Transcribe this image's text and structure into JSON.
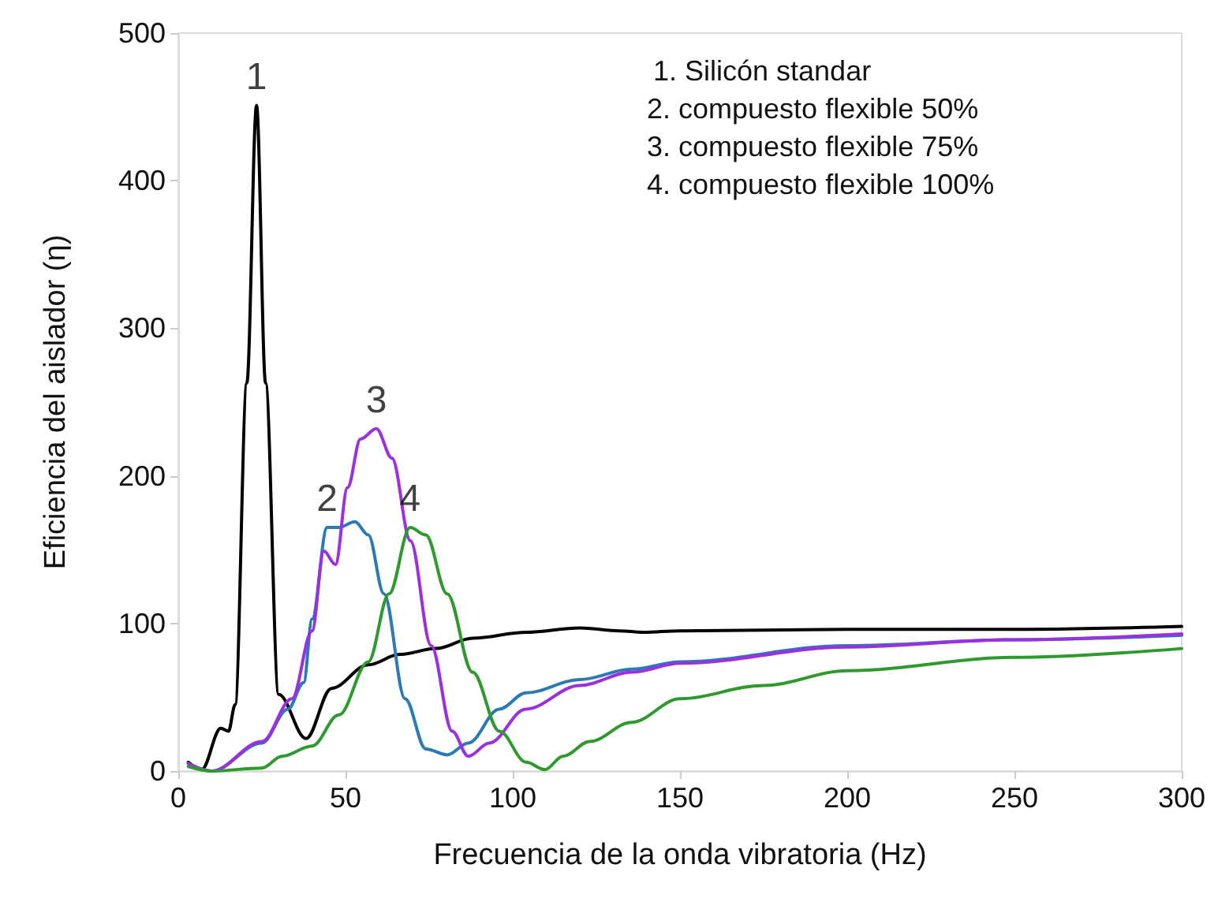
{
  "chart_data": {
    "type": "line",
    "xlabel": "Frecuencia de la onda vibratoria (Hz)",
    "ylabel": "Eficiencia del aislador (η)",
    "xlim": [
      0,
      300
    ],
    "xticks": [
      0,
      50,
      100,
      150,
      200,
      250,
      300
    ],
    "ylim": [
      0,
      500
    ],
    "yticks": [
      0,
      100,
      200,
      300,
      400,
      500
    ],
    "grid": false,
    "marker": "none",
    "line_style": "solid",
    "series": [
      {
        "color": "#000000",
        "x": [
          3,
          7,
          12.7,
          15,
          17,
          20.5,
          23.4,
          26.1,
          30,
          38.2,
          45.8,
          56.8,
          66.2,
          77,
          88,
          104,
          120,
          132,
          139,
          150,
          200,
          250,
          300
        ],
        "values": [
          6,
          1,
          29,
          27,
          45,
          263,
          451,
          263,
          52,
          22,
          56,
          72,
          79,
          83,
          90,
          94,
          97,
          95,
          94,
          95,
          96,
          96,
          98
        ]
      },
      {
        "color": "#2a7ab8",
        "x": [
          3,
          10,
          25,
          32.8,
          37.5,
          40,
          44.5,
          48,
          52.8,
          56.8,
          61.5,
          67.8,
          74,
          80.4,
          86.7,
          96,
          104,
          120,
          135.5,
          150,
          200,
          250,
          300
        ],
        "values": [
          5,
          0,
          19,
          42,
          60,
          103,
          165,
          165,
          169,
          160,
          120,
          49,
          15,
          11,
          19,
          42,
          53,
          62,
          69,
          74,
          85,
          89,
          92
        ]
      },
      {
        "color": "#9b30e0",
        "x": [
          3,
          10,
          25,
          34,
          40,
          43.5,
          47,
          50.6,
          54.5,
          59.2,
          63.9,
          69.4,
          75.6,
          81.9,
          86.7,
          93,
          103.9,
          120,
          135.5,
          150,
          200,
          250,
          300
        ],
        "values": [
          5,
          0,
          20,
          49,
          95,
          149,
          140,
          192,
          225,
          232,
          212,
          156,
          85,
          27,
          10,
          19,
          42,
          58,
          67,
          73,
          84,
          89,
          93
        ]
      },
      {
        "color": "#2e9a2e",
        "x": [
          3,
          10,
          25,
          31,
          40,
          48,
          56.8,
          63,
          69.3,
          74,
          80.4,
          88,
          96,
          104,
          109.6,
          115,
          123,
          135.5,
          150,
          175,
          200,
          250,
          300
        ],
        "values": [
          3,
          0,
          2,
          10,
          17,
          38,
          74,
          120,
          165,
          160,
          120,
          67,
          27,
          6,
          1,
          10,
          20,
          33,
          49,
          58,
          68,
          77,
          83
        ]
      }
    ],
    "annotations": [
      {
        "text": "1",
        "x": 23.4,
        "y": 451
      },
      {
        "text": "2",
        "x": 44.5,
        "y": 165
      },
      {
        "text": "3",
        "x": 59.2,
        "y": 232
      },
      {
        "text": "4",
        "x": 69.3,
        "y": 165
      },
      "1. Silicón standar",
      "2. compuesto flexible 50%",
      "3. compuesto flexible 75%",
      "4. compuesto flexible 100%"
    ]
  }
}
